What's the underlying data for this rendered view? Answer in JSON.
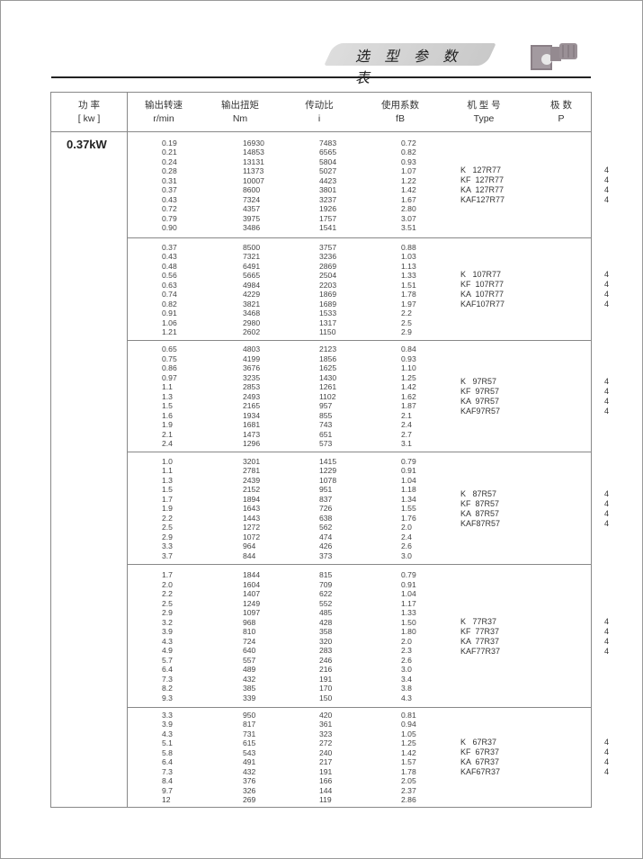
{
  "header": {
    "title": "选 型 参 数 表"
  },
  "columns": [
    {
      "zh": "功  率",
      "en": "[ kw ]"
    },
    {
      "zh": "输出转速",
      "en": "r/min"
    },
    {
      "zh": "输出扭矩",
      "en": "Nm"
    },
    {
      "zh": "传动比",
      "en": "i"
    },
    {
      "zh": "使用系数",
      "en": "fB"
    },
    {
      "zh": "机 型 号",
      "en": "Type"
    },
    {
      "zh": "极  数",
      "en": "P"
    }
  ],
  "power": "0.37kW",
  "blocks": [
    {
      "rows": [
        [
          "0.19",
          "16930",
          "7483",
          "0.72"
        ],
        [
          "0.21",
          "14853",
          "6565",
          "0.82"
        ],
        [
          "0.24",
          "13131",
          "5804",
          "0.93"
        ],
        [
          "0.28",
          "11373",
          "5027",
          "1.07"
        ],
        [
          "0.31",
          "10007",
          "4423",
          "1.22"
        ],
        [
          "0.37",
          "8600",
          "3801",
          "1.42"
        ],
        [
          "0.43",
          "7324",
          "3237",
          "1.67"
        ],
        [
          "0.72",
          "4357",
          "1926",
          "2.80"
        ],
        [
          "0.79",
          "3975",
          "1757",
          "3.07"
        ],
        [
          "0.90",
          "3486",
          "1541",
          "3.51"
        ]
      ],
      "types": [
        [
          "K   127R77",
          "4"
        ],
        [
          "KF  127R77",
          "4"
        ],
        [
          "KA  127R77",
          "4"
        ],
        [
          "KAF127R77",
          "4"
        ]
      ]
    },
    {
      "rows": [
        [
          "0.37",
          "8500",
          "3757",
          "0.88"
        ],
        [
          "0.43",
          "7321",
          "3236",
          "1.03"
        ],
        [
          "0.48",
          "6491",
          "2869",
          "1.13"
        ],
        [
          "0.56",
          "5665",
          "2504",
          "1.33"
        ],
        [
          "0.63",
          "4984",
          "2203",
          "1.51"
        ],
        [
          "0.74",
          "4229",
          "1869",
          "1.78"
        ],
        [
          "0.82",
          "3821",
          "1689",
          "1.97"
        ],
        [
          "0.91",
          "3468",
          "1533",
          "2.2"
        ],
        [
          "1.06",
          "2980",
          "1317",
          "2.5"
        ],
        [
          "1.21",
          "2602",
          "1150",
          "2.9"
        ]
      ],
      "types": [
        [
          "K   107R77",
          "4"
        ],
        [
          "KF  107R77",
          "4"
        ],
        [
          "KA  107R77",
          "4"
        ],
        [
          "KAF107R77",
          "4"
        ]
      ]
    },
    {
      "rows": [
        [
          "0.65",
          "4803",
          "2123",
          "0.84"
        ],
        [
          "0.75",
          "4199",
          "1856",
          "0.93"
        ],
        [
          "0.86",
          "3676",
          "1625",
          "1.10"
        ],
        [
          "0.97",
          "3235",
          "1430",
          "1.25"
        ],
        [
          "1.1",
          "2853",
          "1261",
          "1.42"
        ],
        [
          "1.3",
          "2493",
          "1102",
          "1.62"
        ],
        [
          "1.5",
          "2165",
          "957",
          "1.87"
        ],
        [
          "1.6",
          "1934",
          "855",
          "2.1"
        ],
        [
          "1.9",
          "1681",
          "743",
          "2.4"
        ],
        [
          "2.1",
          "1473",
          "651",
          "2.7"
        ],
        [
          "2.4",
          "1296",
          "573",
          "3.1"
        ]
      ],
      "types": [
        [
          "K   97R57",
          "4"
        ],
        [
          "KF  97R57",
          "4"
        ],
        [
          "KA  97R57",
          "4"
        ],
        [
          "KAF97R57",
          "4"
        ]
      ]
    },
    {
      "rows": [
        [
          "1.0",
          "3201",
          "1415",
          "0.79"
        ],
        [
          "1.1",
          "2781",
          "1229",
          "0.91"
        ],
        [
          "1.3",
          "2439",
          "1078",
          "1.04"
        ],
        [
          "1.5",
          "2152",
          "951",
          "1.18"
        ],
        [
          "1.7",
          "1894",
          "837",
          "1.34"
        ],
        [
          "1.9",
          "1643",
          "726",
          "1.55"
        ],
        [
          "2.2",
          "1443",
          "638",
          "1.76"
        ],
        [
          "2.5",
          "1272",
          "562",
          "2.0"
        ],
        [
          "2.9",
          "1072",
          "474",
          "2.4"
        ],
        [
          "3.3",
          "964",
          "426",
          "2.6"
        ],
        [
          "3.7",
          "844",
          "373",
          "3.0"
        ]
      ],
      "types": [
        [
          "K   87R57",
          "4"
        ],
        [
          "KF  87R57",
          "4"
        ],
        [
          "KA  87R57",
          "4"
        ],
        [
          "KAF87R57",
          "4"
        ]
      ]
    },
    {
      "rows": [
        [
          "1.7",
          "1844",
          "815",
          "0.79"
        ],
        [
          "2.0",
          "1604",
          "709",
          "0.91"
        ],
        [
          "2.2",
          "1407",
          "622",
          "1.04"
        ],
        [
          "2.5",
          "1249",
          "552",
          "1.17"
        ],
        [
          "2.9",
          "1097",
          "485",
          "1.33"
        ],
        [
          "3.2",
          "968",
          "428",
          "1.50"
        ],
        [
          "3.9",
          "810",
          "358",
          "1.80"
        ],
        [
          "4.3",
          "724",
          "320",
          "2.0"
        ],
        [
          "4.9",
          "640",
          "283",
          "2.3"
        ],
        [
          "5.7",
          "557",
          "246",
          "2.6"
        ],
        [
          "6.4",
          "489",
          "216",
          "3.0"
        ],
        [
          "7.3",
          "432",
          "191",
          "3.4"
        ],
        [
          "8.2",
          "385",
          "170",
          "3.8"
        ],
        [
          "9.3",
          "339",
          "150",
          "4.3"
        ]
      ],
      "types": [
        [
          "K   77R37",
          "4"
        ],
        [
          "KF  77R37",
          "4"
        ],
        [
          "KA  77R37",
          "4"
        ],
        [
          "KAF77R37",
          "4"
        ]
      ]
    },
    {
      "rows": [
        [
          "3.3",
          "950",
          "420",
          "0.81"
        ],
        [
          "3.9",
          "817",
          "361",
          "0.94"
        ],
        [
          "4.3",
          "731",
          "323",
          "1.05"
        ],
        [
          "5.1",
          "615",
          "272",
          "1.25"
        ],
        [
          "5.8",
          "543",
          "240",
          "1.42"
        ],
        [
          "6.4",
          "491",
          "217",
          "1.57"
        ],
        [
          "7.3",
          "432",
          "191",
          "1.78"
        ],
        [
          "8.4",
          "376",
          "166",
          "2.05"
        ],
        [
          "9.7",
          "326",
          "144",
          "2.37"
        ],
        [
          "12",
          "269",
          "119",
          "2.86"
        ]
      ],
      "types": [
        [
          "K   67R37",
          "4"
        ],
        [
          "KF  67R37",
          "4"
        ],
        [
          "KA  67R37",
          "4"
        ],
        [
          "KAF67R37",
          "4"
        ]
      ]
    }
  ]
}
